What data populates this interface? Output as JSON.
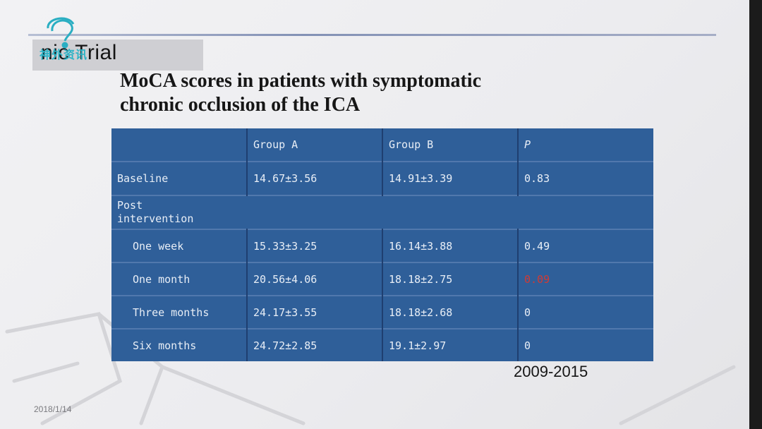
{
  "header": {
    "text": "nic Trial"
  },
  "logo": {
    "text": "神外资讯"
  },
  "title": {
    "line1": "MoCA scores in patients with symptomatic",
    "line2": "chronic occlusion of the ICA"
  },
  "table": {
    "headers": [
      "",
      "Group A",
      "Group B",
      "P"
    ],
    "baseline": {
      "label": "Baseline",
      "a": "14.67±3.56",
      "b": "14.91±3.39",
      "p": "0.83"
    },
    "post_label": [
      "Post",
      "intervention"
    ],
    "rows": [
      {
        "label": "One week",
        "a": "15.33±3.25",
        "b": "16.14±3.88",
        "p": "0.49"
      },
      {
        "label": "One month",
        "a": "20.56±4.06",
        "b": "18.18±2.75",
        "p": "0.09"
      },
      {
        "label": "Three months",
        "a": "24.17±3.55",
        "b": "18.18±2.68",
        "p": "0"
      },
      {
        "label": "Six months",
        "a": "24.72±2.85",
        "b": "19.1±2.97",
        "p": "0"
      }
    ]
  },
  "footer": {
    "years": "2009-2015",
    "date": "2018/1/14"
  },
  "colors": {
    "table_bg": "#2f5f99",
    "significant_p": "#d23a33",
    "accent_rule": "#8391b5"
  }
}
